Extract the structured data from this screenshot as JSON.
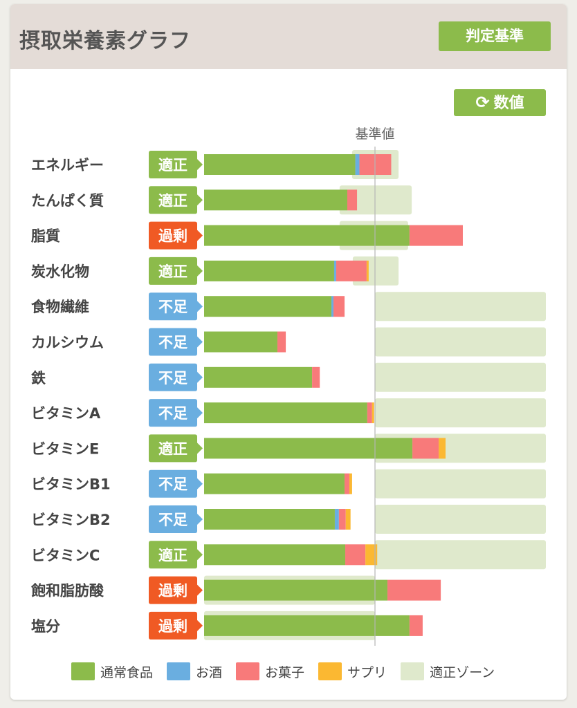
{
  "header": {
    "title": "摂取栄養素グラフ",
    "criteria_button": "判定基準"
  },
  "toolbar": {
    "values_button": "数値",
    "refresh_icon": "refresh-icon"
  },
  "colors": {
    "normal_food": "#8cbb4b",
    "alcohol": "#6aaee0",
    "snacks": "#f87a7a",
    "supplement": "#fbb832",
    "zone": "#dfe9cc",
    "status_ok": "#8cbb4b",
    "status_low": "#6aaee0",
    "status_high": "#f05a24"
  },
  "chart_data": {
    "type": "bar",
    "orientation": "horizontal",
    "stacked": true,
    "reference_line_label": "基準値",
    "reference_value": 100,
    "categories": [
      "エネルギー",
      "たんぱく質",
      "脂質",
      "炭水化物",
      "食物繊維",
      "カルシウム",
      "鉄",
      "ビタミンA",
      "ビタミンE",
      "ビタミンB1",
      "ビタミンB2",
      "ビタミンC",
      "飽和脂肪酸",
      "塩分"
    ],
    "status": [
      "適正",
      "適正",
      "過剰",
      "適正",
      "不足",
      "不足",
      "不足",
      "不足",
      "適正",
      "不足",
      "不足",
      "適正",
      "過剰",
      "過剰"
    ],
    "series": [
      {
        "name": "通常食品",
        "key": "normal_food",
        "values": [
          88.5,
          83.8,
          120.2,
          76.1,
          74.5,
          42.9,
          63.2,
          95.5,
          121.9,
          82.2,
          76.5,
          82.6,
          107.3,
          120.2
        ]
      },
      {
        "name": "お酒",
        "key": "alcohol",
        "values": [
          2.4,
          0,
          0,
          1.2,
          1.2,
          0,
          0,
          0,
          0,
          0,
          2.4,
          0,
          0,
          0
        ]
      },
      {
        "name": "お菓子",
        "key": "snacks",
        "values": [
          18.6,
          5.7,
          31.2,
          17.8,
          6.5,
          4.9,
          4.5,
          2.8,
          15.4,
          2.8,
          4.0,
          11.8,
          31.2,
          7.7
        ]
      },
      {
        "name": "サプリ",
        "key": "supplement",
        "values": [
          0,
          0,
          0,
          1.2,
          0,
          0,
          0,
          1.2,
          4.0,
          1.6,
          2.8,
          6.9,
          0,
          0
        ]
      }
    ],
    "zone_label": "適正ゾーン",
    "zones": [
      [
        86.6,
        113.8
      ],
      [
        79.3,
        121.5
      ],
      [
        79.3,
        119.4
      ],
      [
        87.0,
        113.8
      ],
      [
        100,
        200
      ],
      [
        100,
        200
      ],
      [
        100,
        200
      ],
      [
        100,
        200
      ],
      [
        100,
        200
      ],
      [
        100,
        200
      ],
      [
        100,
        200
      ],
      [
        100,
        200
      ],
      [
        0,
        100
      ],
      [
        0,
        100
      ]
    ],
    "xlim": [
      0,
      200
    ]
  }
}
